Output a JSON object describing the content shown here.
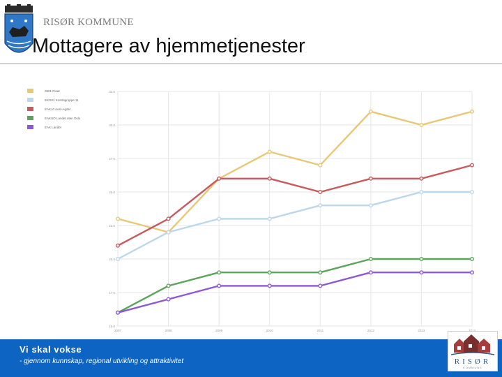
{
  "header": {
    "org_name": "RISØR KOMMUNE",
    "title": "Mottagere av hjemmetjenester"
  },
  "footer": {
    "slogan": "Vi skal vokse",
    "subtitle": "- gjennom kunnskap, regional utvikling og attraktivitet"
  },
  "logo": {
    "text": "RISØR",
    "small_text": "KOMMUNE"
  },
  "colors": {
    "footer_bg": "#0e64c2",
    "series": [
      "#e8c877",
      "#bcd6ea",
      "#c75a5c",
      "#5aa55a",
      "#8e57d6"
    ]
  },
  "chart_data": {
    "type": "line",
    "title": "",
    "xlabel": "",
    "ylabel": "",
    "categories": [
      "2007",
      "2008",
      "2009",
      "2010",
      "2011",
      "2012",
      "2013",
      "2014"
    ],
    "y_ticks": [
      "15.0",
      "17.5",
      "20.0",
      "22.5",
      "25.0",
      "27.5",
      "30.0",
      "32.5"
    ],
    "ylim": [
      15.0,
      32.5
    ],
    "grid": true,
    "legend_position": "top-left",
    "series": [
      {
        "name": "0901 Risør",
        "color": "#e8c877",
        "values": [
          23,
          22,
          26,
          28,
          27,
          31,
          30,
          31
        ]
      },
      {
        "name": "EKG01 Kostragruppe 11",
        "color": "#bcd6ea",
        "values": [
          20,
          22,
          23,
          23,
          24,
          24,
          25,
          25
        ]
      },
      {
        "name": "EAK10 Aust-Agder",
        "color": "#c75a5c",
        "values": [
          21,
          23,
          26,
          26,
          25,
          26,
          26,
          27
        ]
      },
      {
        "name": "EAKUO Landet uten Oslo",
        "color": "#5aa55a",
        "values": [
          16,
          18,
          19,
          19,
          19,
          20,
          20,
          20
        ]
      },
      {
        "name": "EAK Landet",
        "color": "#8e57d6",
        "values": [
          16,
          17,
          18,
          18,
          18,
          19,
          19,
          19
        ]
      }
    ]
  }
}
